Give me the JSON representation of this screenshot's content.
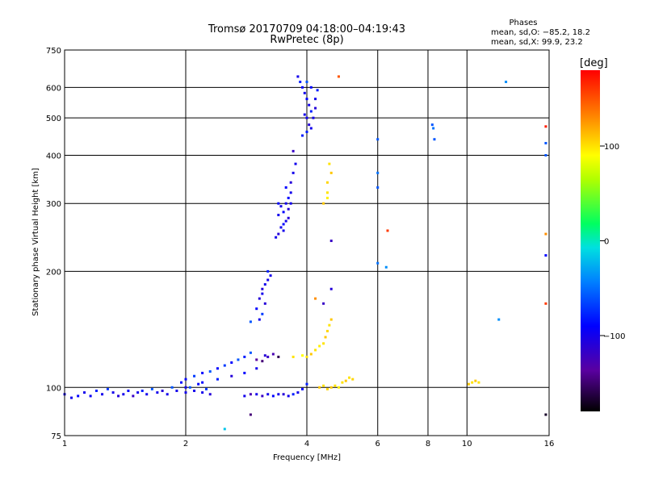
{
  "header": {
    "title_line1": "Tromsø 20170709 04:18:00–04:19:43",
    "title_line2": "RwPretec (8p)"
  },
  "phases": {
    "heading": "Phases",
    "line_o": "mean, sd,O: −85.2, 18.2",
    "line_x": "mean, sd,X:  99.9, 23.2"
  },
  "colorbar": {
    "label": "[deg]",
    "range": [
      -180,
      180
    ],
    "ticks": [
      {
        "value": 100,
        "label": "100"
      },
      {
        "value": 0,
        "label": "0"
      },
      {
        "value": -100,
        "label": "−100"
      }
    ]
  },
  "chart_data": {
    "type": "scatter",
    "title": "Tromsø 20170709 04:18:00–04:19:43",
    "subtitle": "RwPretec (8p)",
    "xlabel": "Frequency [MHz]",
    "ylabel": "Stationary phase Virtual Height [km]",
    "x_scale": "log",
    "y_scale": "log",
    "xlim": [
      1,
      16
    ],
    "ylim": [
      75,
      750
    ],
    "grid": true,
    "x_ticks": [
      {
        "value": 1,
        "label": "1"
      },
      {
        "value": 2,
        "label": "2"
      },
      {
        "value": 4,
        "label": "4"
      },
      {
        "value": 6,
        "label": "6"
      },
      {
        "value": 8,
        "label": "8"
      },
      {
        "value": 10,
        "label": "10"
      },
      {
        "value": 16,
        "label": "16"
      }
    ],
    "y_ticks": [
      {
        "value": 75,
        "label": "75"
      },
      {
        "value": 100,
        "label": "100"
      },
      {
        "value": 200,
        "label": "200"
      },
      {
        "value": 300,
        "label": "300"
      },
      {
        "value": 400,
        "label": "400"
      },
      {
        "value": 500,
        "label": "500"
      },
      {
        "value": 600,
        "label": "600"
      },
      {
        "value": 750,
        "label": "750"
      }
    ],
    "color_variable": "phase [deg]",
    "points": [
      [
        1.0,
        96,
        -100
      ],
      [
        1.04,
        94,
        -100
      ],
      [
        1.08,
        95,
        -90
      ],
      [
        1.12,
        97,
        -100
      ],
      [
        1.16,
        95,
        -95
      ],
      [
        1.2,
        98,
        -80
      ],
      [
        1.24,
        96,
        -100
      ],
      [
        1.28,
        99,
        -70
      ],
      [
        1.32,
        97,
        -100
      ],
      [
        1.36,
        95,
        -110
      ],
      [
        1.4,
        96,
        -100
      ],
      [
        1.44,
        98,
        -90
      ],
      [
        1.48,
        95,
        -120
      ],
      [
        1.52,
        97,
        -100
      ],
      [
        1.56,
        98,
        -80
      ],
      [
        1.6,
        96,
        -100
      ],
      [
        1.65,
        99,
        -60
      ],
      [
        1.7,
        97,
        -100
      ],
      [
        1.75,
        98,
        -110
      ],
      [
        1.8,
        96,
        -100
      ],
      [
        1.85,
        100,
        -60
      ],
      [
        1.9,
        98,
        -100
      ],
      [
        1.95,
        103,
        -90
      ],
      [
        2.0,
        97,
        -100
      ],
      [
        2.05,
        100,
        -60
      ],
      [
        2.1,
        98,
        -100
      ],
      [
        2.15,
        102,
        -90
      ],
      [
        2.2,
        97,
        -100
      ],
      [
        2.25,
        99,
        -70
      ],
      [
        2.3,
        96,
        -110
      ],
      [
        2.0,
        105,
        -90
      ],
      [
        2.1,
        107,
        -70
      ],
      [
        2.2,
        109,
        -90
      ],
      [
        2.3,
        110,
        -60
      ],
      [
        2.4,
        112,
        -90
      ],
      [
        2.5,
        114,
        -70
      ],
      [
        2.6,
        116,
        -90
      ],
      [
        2.7,
        118,
        -60
      ],
      [
        2.8,
        120,
        -80
      ],
      [
        2.9,
        123,
        -60
      ],
      [
        2.0,
        100,
        -100
      ],
      [
        2.2,
        103,
        -90
      ],
      [
        2.4,
        105,
        -80
      ],
      [
        2.6,
        107,
        -110
      ],
      [
        2.8,
        109,
        -90
      ],
      [
        3.0,
        112,
        -100
      ],
      [
        2.8,
        95,
        -100
      ],
      [
        2.9,
        96,
        -130
      ],
      [
        3.0,
        96,
        -100
      ],
      [
        3.1,
        95,
        -120
      ],
      [
        3.2,
        96,
        -100
      ],
      [
        3.3,
        95,
        -90
      ],
      [
        3.4,
        96,
        -100
      ],
      [
        3.5,
        96,
        -110
      ],
      [
        3.6,
        95,
        -100
      ],
      [
        3.7,
        96,
        -80
      ],
      [
        3.8,
        97,
        -100
      ],
      [
        3.9,
        99,
        -90
      ],
      [
        4.0,
        102,
        -80
      ],
      [
        3.0,
        118,
        -140
      ],
      [
        3.2,
        120,
        -120
      ],
      [
        3.1,
        117,
        -150
      ],
      [
        3.3,
        122,
        -130
      ],
      [
        3.4,
        120,
        -160
      ],
      [
        3.15,
        121,
        -110
      ],
      [
        3.05,
        170,
        -110
      ],
      [
        3.1,
        175,
        -100
      ],
      [
        3.1,
        180,
        -110
      ],
      [
        3.15,
        185,
        -100
      ],
      [
        3.15,
        165,
        -110
      ],
      [
        3.2,
        190,
        -100
      ],
      [
        3.2,
        200,
        -80
      ],
      [
        3.25,
        195,
        -100
      ],
      [
        3.0,
        160,
        -90
      ],
      [
        3.1,
        155,
        -70
      ],
      [
        3.05,
        150,
        -100
      ],
      [
        2.9,
        148,
        -60
      ],
      [
        3.35,
        245,
        -100
      ],
      [
        3.4,
        250,
        -110
      ],
      [
        3.45,
        260,
        -100
      ],
      [
        3.5,
        265,
        -90
      ],
      [
        3.55,
        270,
        -100
      ],
      [
        3.4,
        280,
        -100
      ],
      [
        3.5,
        285,
        -90
      ],
      [
        3.6,
        290,
        -110
      ],
      [
        3.45,
        295,
        -100
      ],
      [
        3.55,
        300,
        -100
      ],
      [
        3.6,
        310,
        -90
      ],
      [
        3.65,
        320,
        -100
      ],
      [
        3.65,
        340,
        -110
      ],
      [
        3.7,
        360,
        -100
      ],
      [
        3.75,
        380,
        -100
      ],
      [
        3.55,
        330,
        -90
      ],
      [
        3.5,
        255,
        -100
      ],
      [
        3.6,
        275,
        -110
      ],
      [
        3.4,
        300,
        -90
      ],
      [
        3.65,
        300,
        -100
      ],
      [
        3.7,
        410,
        -120
      ],
      [
        3.8,
        640,
        -100
      ],
      [
        3.85,
        620,
        -80
      ],
      [
        3.9,
        600,
        -90
      ],
      [
        3.95,
        580,
        -100
      ],
      [
        4.0,
        560,
        -90
      ],
      [
        4.05,
        540,
        -100
      ],
      [
        4.1,
        520,
        -80
      ],
      [
        4.0,
        500,
        -100
      ],
      [
        4.05,
        480,
        -110
      ],
      [
        4.1,
        470,
        -100
      ],
      [
        4.0,
        460,
        -80
      ],
      [
        4.15,
        500,
        -100
      ],
      [
        4.2,
        530,
        -110
      ],
      [
        3.95,
        510,
        -100
      ],
      [
        4.1,
        600,
        -90
      ],
      [
        4.2,
        560,
        -100
      ],
      [
        4.25,
        590,
        -80
      ],
      [
        4.0,
        620,
        -60
      ],
      [
        3.9,
        450,
        -80
      ],
      [
        4.0,
        120,
        100
      ],
      [
        4.1,
        122,
        110
      ],
      [
        4.2,
        125,
        100
      ],
      [
        4.3,
        128,
        95
      ],
      [
        4.4,
        130,
        100
      ],
      [
        4.45,
        135,
        110
      ],
      [
        4.5,
        140,
        105
      ],
      [
        4.55,
        145,
        100
      ],
      [
        4.6,
        150,
        110
      ],
      [
        3.7,
        120,
        100
      ],
      [
        3.9,
        121,
        90
      ],
      [
        4.3,
        100,
        110
      ],
      [
        4.4,
        101,
        100
      ],
      [
        4.5,
        99,
        105
      ],
      [
        4.6,
        100,
        110
      ],
      [
        4.7,
        101,
        100
      ],
      [
        4.8,
        100,
        95
      ],
      [
        4.9,
        103,
        100
      ],
      [
        5.0,
        104,
        110
      ],
      [
        5.1,
        106,
        100
      ],
      [
        5.2,
        105,
        105
      ],
      [
        4.4,
        300,
        110
      ],
      [
        4.5,
        320,
        100
      ],
      [
        4.5,
        340,
        105
      ],
      [
        4.6,
        360,
        110
      ],
      [
        4.55,
        380,
        100
      ],
      [
        4.5,
        310,
        95
      ],
      [
        4.6,
        240,
        -120
      ],
      [
        4.6,
        180,
        -110
      ],
      [
        6.0,
        210,
        -50
      ],
      [
        6.0,
        330,
        -60
      ],
      [
        6.0,
        360,
        -50
      ],
      [
        6.0,
        440,
        -60
      ],
      [
        6.3,
        205,
        -40
      ],
      [
        6.35,
        255,
        160
      ],
      [
        8.2,
        480,
        -60
      ],
      [
        8.25,
        470,
        -50
      ],
      [
        8.3,
        440,
        -60
      ],
      [
        12.5,
        620,
        -40
      ],
      [
        12.0,
        150,
        -40
      ],
      [
        10.1,
        102,
        110
      ],
      [
        10.3,
        103,
        100
      ],
      [
        10.5,
        104,
        110
      ],
      [
        10.7,
        103,
        100
      ],
      [
        15.7,
        475,
        170
      ],
      [
        15.7,
        430,
        -60
      ],
      [
        15.7,
        400,
        -60
      ],
      [
        15.7,
        250,
        130
      ],
      [
        15.7,
        220,
        -90
      ],
      [
        15.7,
        165,
        160
      ],
      [
        15.7,
        85,
        -170
      ],
      [
        2.5,
        78,
        -20
      ],
      [
        2.9,
        85,
        -150
      ],
      [
        4.8,
        640,
        150
      ],
      [
        4.2,
        170,
        130
      ],
      [
        4.4,
        165,
        -120
      ]
    ]
  }
}
